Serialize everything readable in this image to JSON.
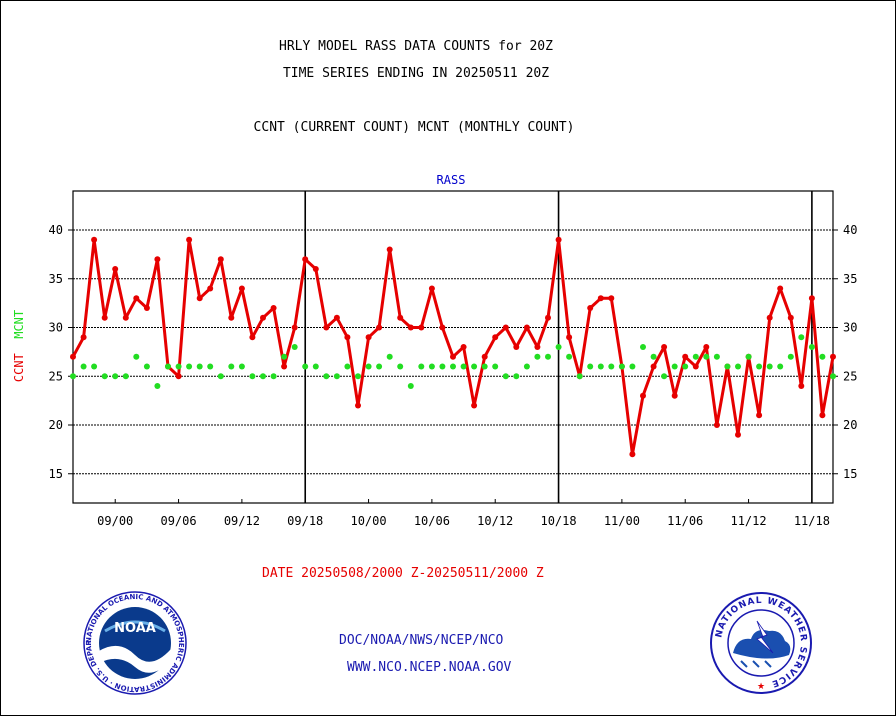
{
  "header": {
    "title_line1": "HRLY MODEL RASS DATA COUNTS for 20Z",
    "title_line2": "TIME SERIES ENDING IN 20250511 20Z",
    "subtitle": "CCNT (CURRENT COUNT) MCNT (MONTHLY COUNT)"
  },
  "footer": {
    "date_range": "DATE 20250508/2000 Z-20250511/2000 Z",
    "credit_line1": "DOC/NOAA/NWS/NCEP/NCO",
    "credit_line2": "WWW.NCO.NCEP.NOAA.GOV"
  },
  "logos": {
    "noaa_text": "NOAA",
    "noaa_ring_text": "NATIONAL OCEANIC AND ATMOSPHERIC ADMINISTRATION · U.S. DEPARTMENT OF COMMERCE ·",
    "nws_ring_text": "NATIONAL WEATHER SERVICE"
  },
  "colors": {
    "ccnt": "#e60000",
    "mcnt": "#22dd22",
    "panel_label": "#0000cc",
    "credit": "#1a1ab0"
  },
  "chart_data": {
    "type": "line",
    "panel_label": "RASS",
    "ylabel_parts": [
      "CCNT",
      "MCNT"
    ],
    "ylim": [
      12,
      44
    ],
    "yticks": [
      15,
      20,
      25,
      30,
      35,
      40
    ],
    "grid": true,
    "xlim": [
      0,
      72
    ],
    "x_tick_labels": [
      {
        "x": 4,
        "label": "09/00"
      },
      {
        "x": 10,
        "label": "09/06"
      },
      {
        "x": 16,
        "label": "09/12"
      },
      {
        "x": 22,
        "label": "09/18"
      },
      {
        "x": 28,
        "label": "10/00"
      },
      {
        "x": 34,
        "label": "10/06"
      },
      {
        "x": 40,
        "label": "10/12"
      },
      {
        "x": 46,
        "label": "10/18"
      },
      {
        "x": 52,
        "label": "11/00"
      },
      {
        "x": 58,
        "label": "11/06"
      },
      {
        "x": 64,
        "label": "11/12"
      },
      {
        "x": 70,
        "label": "11/18"
      }
    ],
    "day_boundaries": [
      22,
      46,
      70
    ],
    "series": [
      {
        "name": "CCNT",
        "style": "line+markers",
        "values": [
          27,
          29,
          39,
          31,
          36,
          31,
          33,
          32,
          37,
          26,
          25,
          39,
          33,
          34,
          37,
          31,
          34,
          29,
          31,
          32,
          26,
          30,
          37,
          36,
          30,
          31,
          29,
          22,
          29,
          30,
          38,
          31,
          30,
          30,
          34,
          30,
          27,
          28,
          22,
          27,
          29,
          30,
          28,
          30,
          28,
          31,
          39,
          29,
          25,
          32,
          33,
          33,
          26,
          17,
          23,
          26,
          28,
          23,
          27,
          26,
          28,
          20,
          26,
          19,
          27,
          21,
          31,
          34,
          31,
          24,
          33,
          21,
          27
        ]
      },
      {
        "name": "MCNT",
        "style": "markers",
        "values": [
          25,
          26,
          26,
          25,
          25,
          25,
          27,
          26,
          24,
          26,
          26,
          26,
          26,
          26,
          25,
          26,
          26,
          25,
          25,
          25,
          27,
          28,
          26,
          26,
          25,
          25,
          26,
          25,
          26,
          26,
          27,
          26,
          24,
          26,
          26,
          26,
          26,
          26,
          26,
          26,
          26,
          25,
          25,
          26,
          27,
          27,
          28,
          27,
          25,
          26,
          26,
          26,
          26,
          26,
          28,
          27,
          25,
          26,
          26,
          27,
          27,
          27,
          26,
          26,
          27,
          26,
          26,
          26,
          27,
          29,
          28,
          27,
          25
        ]
      }
    ]
  }
}
